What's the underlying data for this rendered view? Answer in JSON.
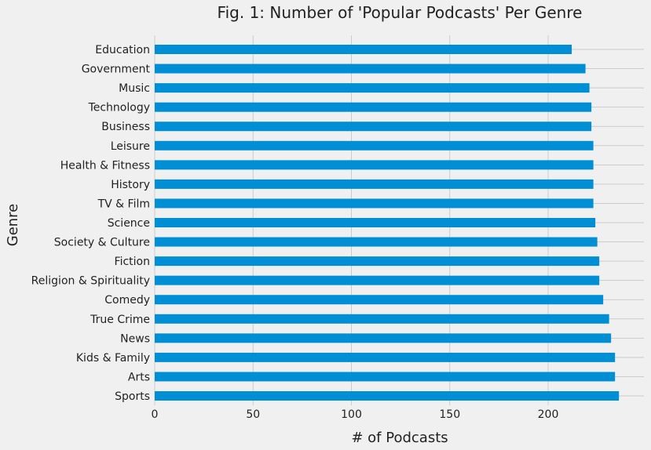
{
  "chart_data": {
    "type": "bar",
    "orientation": "horizontal",
    "title": "Fig. 1: Number of 'Popular Podcasts' Per Genre",
    "xlabel": "# of Podcasts",
    "ylabel": "Genre",
    "xlim": [
      0,
      250
    ],
    "xticks": [
      0,
      50,
      100,
      150,
      200
    ],
    "grid": true,
    "bar_color": "#008fd5",
    "categories": [
      "Sports",
      "Arts",
      "Kids & Family",
      "News",
      "True Crime",
      "Comedy",
      "Religion & Spirituality",
      "Fiction",
      "Society & Culture",
      "Science",
      "TV & Film",
      "History",
      "Health & Fitness",
      "Leisure",
      "Business",
      "Technology",
      "Music",
      "Government",
      "Education"
    ],
    "values": [
      236,
      234,
      234,
      232,
      231,
      228,
      226,
      226,
      225,
      224,
      223,
      223,
      223,
      223,
      222,
      222,
      221,
      219,
      212
    ]
  }
}
